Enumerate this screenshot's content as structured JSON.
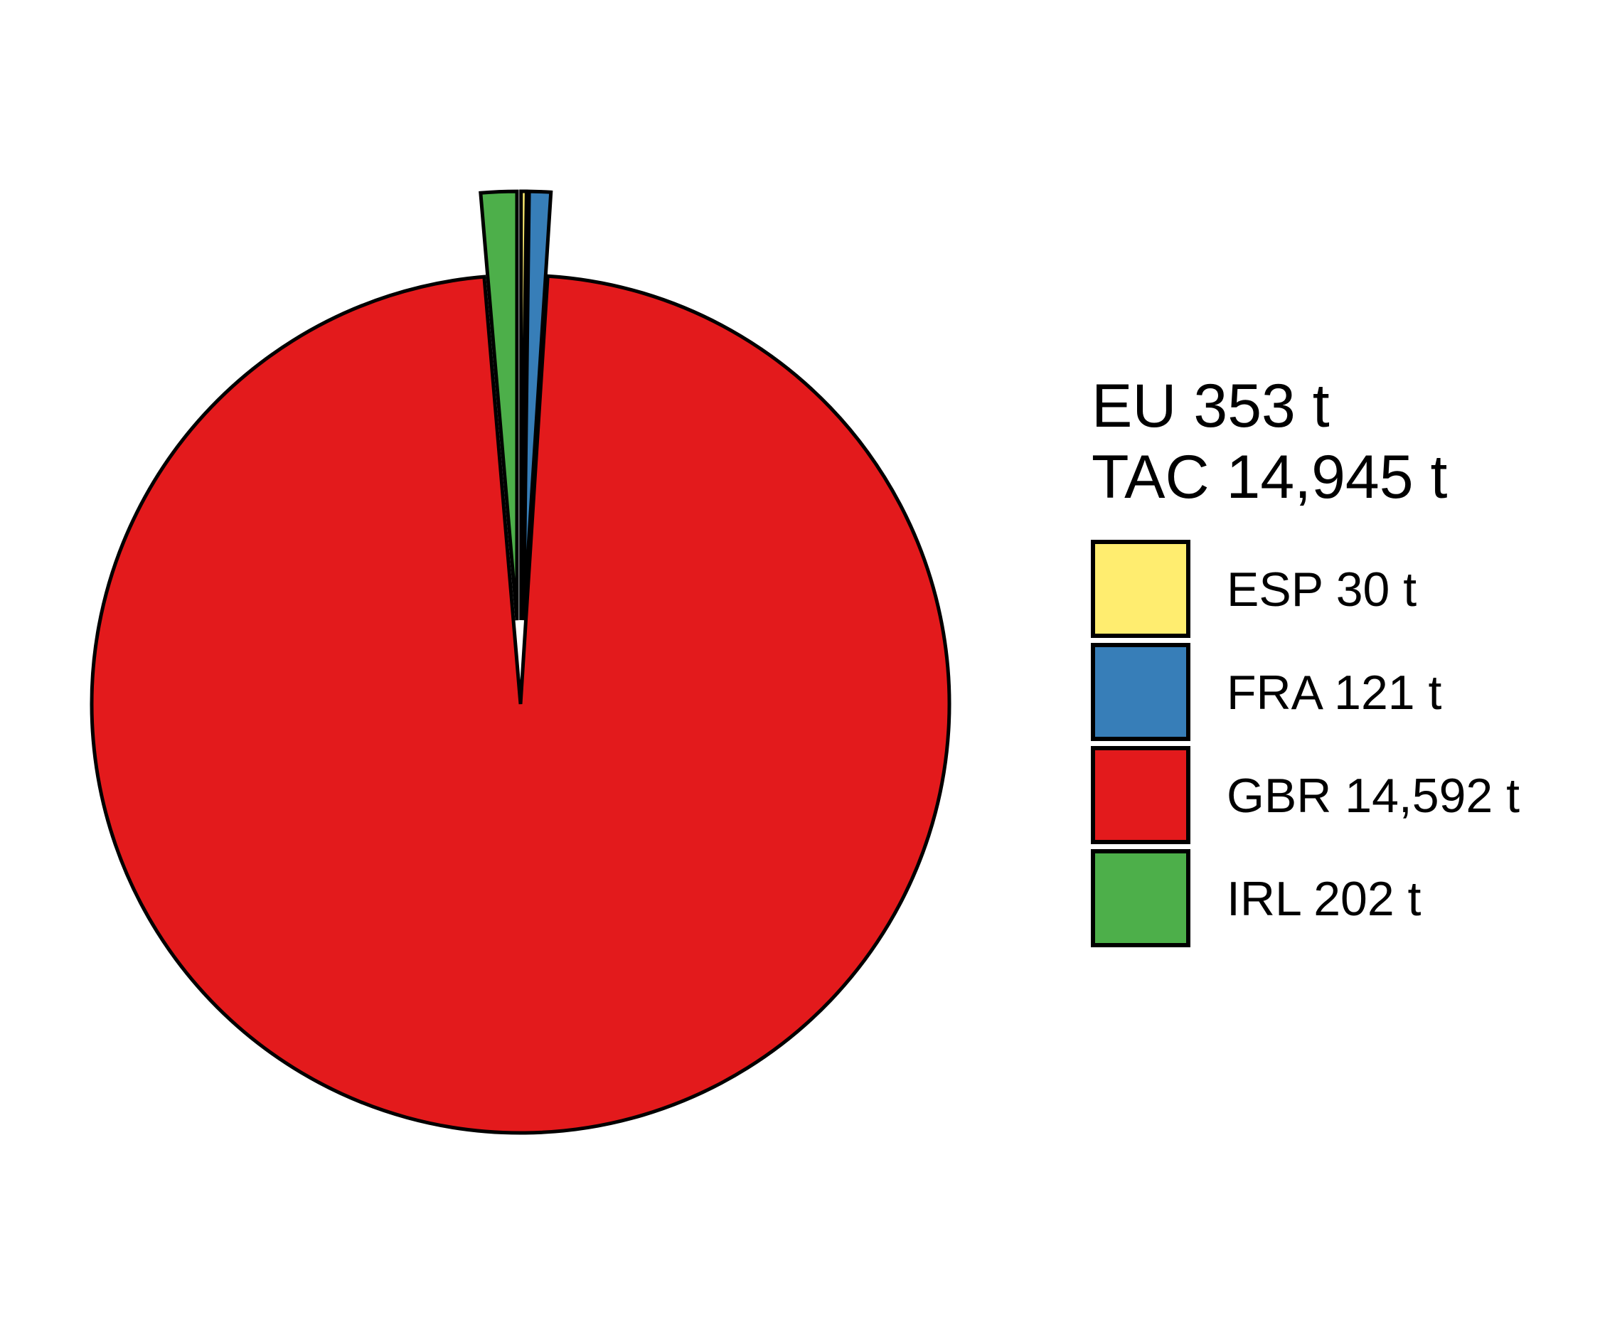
{
  "chart_data": {
    "type": "pie",
    "title_lines": [
      "EU 353 t",
      "TAC 14,945 t"
    ],
    "slices": [
      {
        "label": "ESP 30 t",
        "code": "ESP",
        "value": 30,
        "color": "#FFED6F",
        "exploded": true
      },
      {
        "label": "FRA 121 t",
        "code": "FRA",
        "value": 121,
        "color": "#377EB8",
        "exploded": true
      },
      {
        "label": "GBR 14,592 t",
        "code": "GBR",
        "value": 14592,
        "color": "#E31A1C",
        "exploded": false
      },
      {
        "label": "IRL 202 t",
        "code": "IRL",
        "value": 202,
        "color": "#4DAF4A",
        "exploded": true
      }
    ],
    "legend_position": "right",
    "outline_color": "#000000"
  }
}
